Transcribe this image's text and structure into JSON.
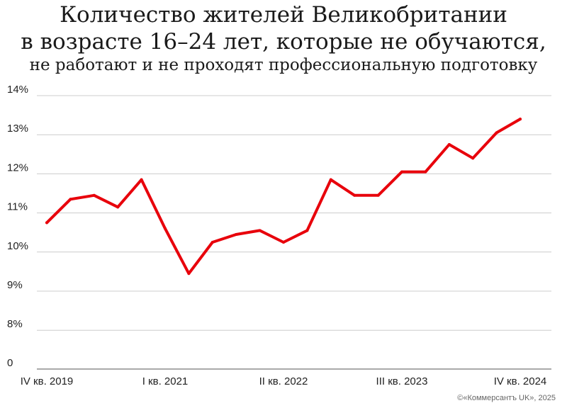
{
  "title": {
    "line1": "Количество жителей Великобритании",
    "line2": "в возрасте 16–24 лет, которые не обучаются,",
    "line3": "не работают и не проходят профессиональную подготовку"
  },
  "credit": "©«Коммерсантъ UK», 2025",
  "colors": {
    "line": "#e8000b",
    "grid": "#cccccc",
    "axis": "#555555"
  },
  "chart_data": {
    "type": "line",
    "ylim": [
      0,
      14
    ],
    "axis_break": true,
    "y_ticks": [
      {
        "value": 14,
        "label": "14%"
      },
      {
        "value": 13,
        "label": "13%"
      },
      {
        "value": 12,
        "label": "12%"
      },
      {
        "value": 11,
        "label": "11%"
      },
      {
        "value": 10,
        "label": "10%"
      },
      {
        "value": 9,
        "label": "9%"
      },
      {
        "value": 8,
        "label": "8%"
      },
      {
        "value": 0,
        "label": "0"
      }
    ],
    "x_tick_labels": [
      "IV кв. 2019",
      "I кв. 2021",
      "II кв. 2022",
      "III кв. 2023",
      "IV кв. 2024"
    ],
    "x_tick_indices": [
      0,
      5,
      10,
      15,
      20
    ],
    "series": [
      {
        "values": [
          10.75,
          11.35,
          11.45,
          11.15,
          11.85,
          10.6,
          9.45,
          10.25,
          10.45,
          10.55,
          10.25,
          10.55,
          11.85,
          11.45,
          11.45,
          12.05,
          12.05,
          12.75,
          12.4,
          13.05,
          13.4
        ]
      }
    ]
  }
}
